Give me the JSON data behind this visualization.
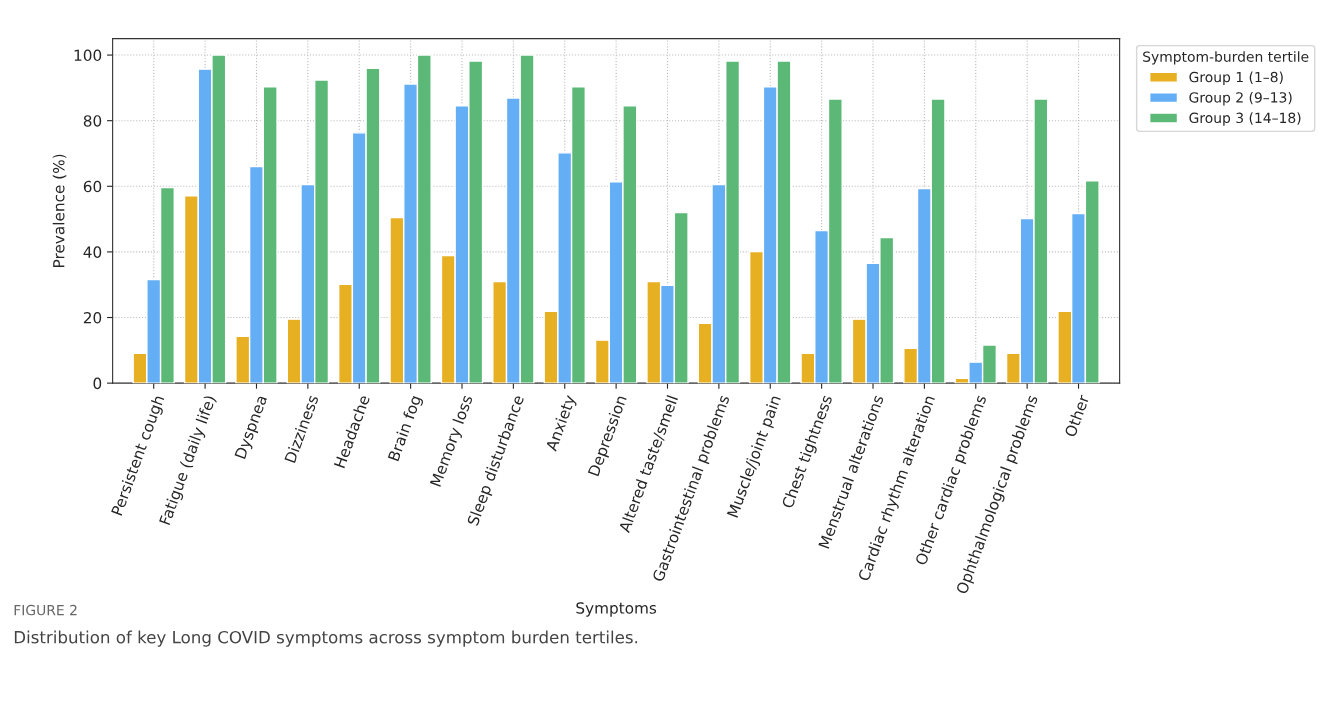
{
  "chart_data": {
    "type": "bar",
    "categories": [
      "Persistent cough",
      "Fatigue (daily life)",
      "Dyspnea",
      "Dizziness",
      "Headache",
      "Brain fog",
      "Memory loss",
      "Sleep disturbance",
      "Anxiety",
      "Depression",
      "Altered taste/smell",
      "Gastrointestinal problems",
      "Muscle/joint pain",
      "Chest tightness",
      "Menstrual alterations",
      "Cardiac rhythm alteration",
      "Other cardiac problems",
      "Ophthalmological problems",
      "Other"
    ],
    "series": [
      {
        "name": "Group 1 (1–8)",
        "color": "#e6b022",
        "values": [
          9.1,
          57.1,
          14.3,
          19.5,
          30.1,
          50.5,
          38.9,
          31.0,
          21.9,
          13.1,
          31.0,
          18.2,
          40.1,
          9.1,
          19.5,
          10.6,
          1.5,
          9.1,
          21.9
        ]
      },
      {
        "name": "Group 2 (9–13)",
        "color": "#63aef5",
        "values": [
          31.6,
          95.7,
          66.0,
          60.5,
          76.3,
          91.2,
          84.5,
          86.9,
          70.2,
          61.4,
          29.8,
          60.5,
          90.3,
          46.5,
          36.5,
          59.3,
          6.4,
          50.2,
          51.7
        ]
      },
      {
        "name": "Group 3 (14–18)",
        "color": "#5bb876",
        "values": [
          59.6,
          100,
          90.3,
          92.4,
          96.0,
          100,
          98.2,
          100,
          90.3,
          84.5,
          52.0,
          98.2,
          98.2,
          86.6,
          44.4,
          86.6,
          11.6,
          86.6,
          61.7
        ]
      }
    ],
    "xlabel": "Symptoms",
    "ylabel": "Prevalence (%)",
    "legend_title": "Symptom-burden tertile",
    "ylim": [
      0,
      105
    ],
    "yticks": [
      0,
      20,
      40,
      60,
      80,
      100
    ],
    "grid": true,
    "legend": "top right",
    "annotations": [
      "FIGURE 2",
      "Distribution of key Long COVID symptoms across symptom burden tertiles."
    ]
  }
}
